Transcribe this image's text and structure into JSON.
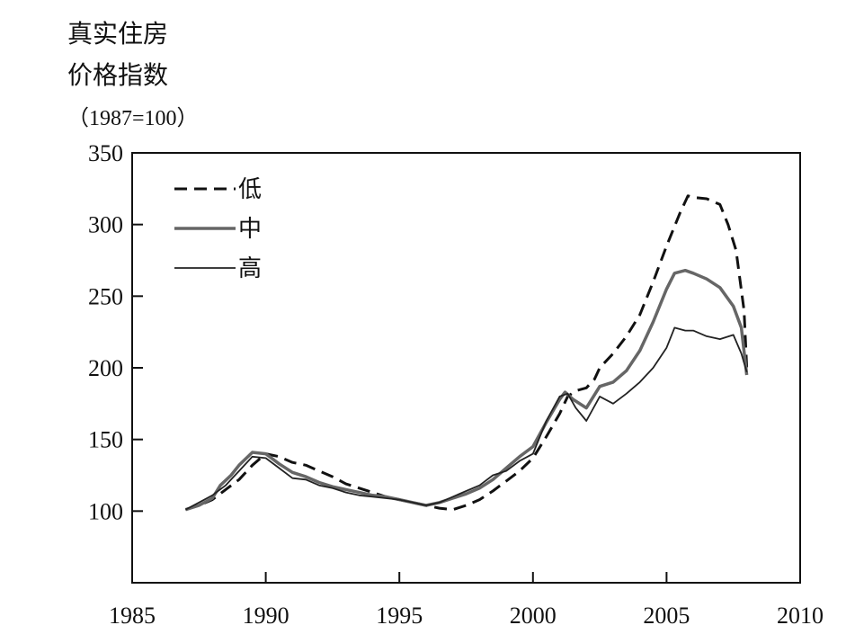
{
  "chart_data": {
    "type": "line",
    "title": "",
    "ylabel_lines": [
      "真实住房",
      "价格指数",
      "（1987=100）"
    ],
    "xlabel": "",
    "xlim": [
      1985,
      2010
    ],
    "ylim": [
      50,
      350
    ],
    "xticks": [
      1985,
      1990,
      1995,
      2000,
      2005,
      2010
    ],
    "yticks": [
      100,
      150,
      200,
      250,
      300,
      350
    ],
    "legend_position": "top-left",
    "grid": false,
    "series": [
      {
        "name": "低",
        "style": "dashed",
        "color": "#111111",
        "points": [
          [
            1987.0,
            101
          ],
          [
            1987.5,
            104
          ],
          [
            1988.0,
            108
          ],
          [
            1988.5,
            115
          ],
          [
            1989.0,
            122
          ],
          [
            1989.5,
            132
          ],
          [
            1990.0,
            140
          ],
          [
            1990.5,
            138
          ],
          [
            1991.0,
            134
          ],
          [
            1991.5,
            132
          ],
          [
            1992.0,
            128
          ],
          [
            1992.5,
            124
          ],
          [
            1993.0,
            119
          ],
          [
            1993.5,
            116
          ],
          [
            1994.0,
            113
          ],
          [
            1994.5,
            110
          ],
          [
            1995.0,
            108
          ],
          [
            1995.5,
            106
          ],
          [
            1996.0,
            104
          ],
          [
            1996.5,
            102
          ],
          [
            1997.0,
            101
          ],
          [
            1997.5,
            104
          ],
          [
            1998.0,
            108
          ],
          [
            1998.5,
            114
          ],
          [
            1999.0,
            121
          ],
          [
            1999.5,
            128
          ],
          [
            2000.0,
            137
          ],
          [
            2000.5,
            152
          ],
          [
            2001.0,
            168
          ],
          [
            2001.3,
            180
          ],
          [
            2001.6,
            184
          ],
          [
            2002.0,
            186
          ],
          [
            2002.3,
            192
          ],
          [
            2002.5,
            200
          ],
          [
            2003.0,
            210
          ],
          [
            2003.5,
            222
          ],
          [
            2004.0,
            237
          ],
          [
            2004.5,
            260
          ],
          [
            2005.0,
            285
          ],
          [
            2005.5,
            308
          ],
          [
            2005.8,
            320
          ],
          [
            2006.0,
            319
          ],
          [
            2006.5,
            318
          ],
          [
            2007.0,
            314
          ],
          [
            2007.3,
            300
          ],
          [
            2007.6,
            282
          ],
          [
            2007.9,
            240
          ],
          [
            2008.0,
            200
          ]
        ]
      },
      {
        "name": "中",
        "style": "solid",
        "color": "#666666",
        "points": [
          [
            1987.0,
            101
          ],
          [
            1987.5,
            104
          ],
          [
            1988.0,
            109
          ],
          [
            1988.3,
            118
          ],
          [
            1988.7,
            125
          ],
          [
            1989.0,
            132
          ],
          [
            1989.5,
            141
          ],
          [
            1990.0,
            140
          ],
          [
            1990.5,
            133
          ],
          [
            1991.0,
            127
          ],
          [
            1991.5,
            124
          ],
          [
            1992.0,
            120
          ],
          [
            1992.5,
            117
          ],
          [
            1993.0,
            115
          ],
          [
            1993.5,
            113
          ],
          [
            1994.0,
            111
          ],
          [
            1994.5,
            110
          ],
          [
            1995.0,
            108
          ],
          [
            1995.5,
            106
          ],
          [
            1996.0,
            104
          ],
          [
            1996.5,
            106
          ],
          [
            1997.0,
            109
          ],
          [
            1997.5,
            112
          ],
          [
            1998.0,
            116
          ],
          [
            1998.5,
            122
          ],
          [
            1999.0,
            130
          ],
          [
            1999.5,
            138
          ],
          [
            2000.0,
            145
          ],
          [
            2000.5,
            162
          ],
          [
            2001.0,
            178
          ],
          [
            2001.2,
            183
          ],
          [
            2001.5,
            178
          ],
          [
            2002.0,
            172
          ],
          [
            2002.5,
            187
          ],
          [
            2003.0,
            190
          ],
          [
            2003.5,
            198
          ],
          [
            2004.0,
            212
          ],
          [
            2004.5,
            232
          ],
          [
            2005.0,
            255
          ],
          [
            2005.3,
            266
          ],
          [
            2005.7,
            268
          ],
          [
            2006.0,
            266
          ],
          [
            2006.5,
            262
          ],
          [
            2007.0,
            256
          ],
          [
            2007.5,
            243
          ],
          [
            2007.8,
            228
          ],
          [
            2008.0,
            195
          ]
        ]
      },
      {
        "name": "高",
        "style": "thin",
        "color": "#222222",
        "points": [
          [
            1987.0,
            101
          ],
          [
            1987.5,
            106
          ],
          [
            1988.0,
            111
          ],
          [
            1988.5,
            118
          ],
          [
            1989.0,
            128
          ],
          [
            1989.5,
            138
          ],
          [
            1990.0,
            137
          ],
          [
            1990.5,
            130
          ],
          [
            1991.0,
            123
          ],
          [
            1991.5,
            122
          ],
          [
            1992.0,
            118
          ],
          [
            1992.5,
            116
          ],
          [
            1993.0,
            113
          ],
          [
            1993.5,
            111
          ],
          [
            1994.0,
            110
          ],
          [
            1994.5,
            109
          ],
          [
            1995.0,
            108
          ],
          [
            1995.5,
            106
          ],
          [
            1996.0,
            104
          ],
          [
            1996.5,
            106
          ],
          [
            1997.0,
            110
          ],
          [
            1997.5,
            114
          ],
          [
            1998.0,
            118
          ],
          [
            1998.5,
            125
          ],
          [
            1999.0,
            128
          ],
          [
            1999.5,
            135
          ],
          [
            2000.0,
            140
          ],
          [
            2000.5,
            163
          ],
          [
            2001.0,
            180
          ],
          [
            2001.3,
            182
          ],
          [
            2001.6,
            172
          ],
          [
            2002.0,
            163
          ],
          [
            2002.5,
            180
          ],
          [
            2003.0,
            175
          ],
          [
            2003.5,
            182
          ],
          [
            2004.0,
            190
          ],
          [
            2004.5,
            200
          ],
          [
            2005.0,
            214
          ],
          [
            2005.3,
            228
          ],
          [
            2005.7,
            226
          ],
          [
            2006.0,
            226
          ],
          [
            2006.5,
            222
          ],
          [
            2007.0,
            220
          ],
          [
            2007.5,
            223
          ],
          [
            2007.8,
            210
          ],
          [
            2008.0,
            197
          ]
        ]
      }
    ]
  }
}
